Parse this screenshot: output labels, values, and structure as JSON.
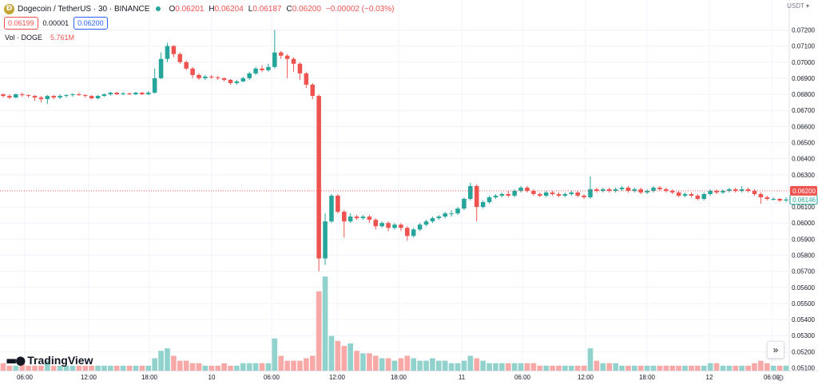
{
  "header": {
    "coin_letter": "Ð",
    "symbol": "Dogecoin / TetherUS · 30 · BINANCE",
    "ohlc": [
      {
        "k": "O",
        "v": "0.06201"
      },
      {
        "k": "H",
        "v": "0.06204"
      },
      {
        "k": "L",
        "v": "0.06187"
      },
      {
        "k": "C",
        "v": "0.06200"
      },
      {
        "k": "",
        "v": "−0.00002 (−0.03%)"
      }
    ],
    "sell_price": "0.06199",
    "spread": "0.00001",
    "buy_price": "0.06200"
  },
  "volume_legend": {
    "label": "Vol · DOGE",
    "value": "5.761M"
  },
  "currency": "USDT",
  "logo_text": "TradingView",
  "goto_icon": "»",
  "settings_icon": "gear-icon",
  "colors": {
    "up": "#26a69a",
    "down": "#ef5350",
    "up_vol": "#92d2cc",
    "down_vol": "#f7a9a7",
    "grid": "#f0f3fa",
    "axis_text": "#131722",
    "accent": "#2962ff"
  },
  "chart_data": {
    "type": "candlestick",
    "price_axis": {
      "min": 0.0506,
      "max": 0.0726,
      "ticks": [
        "0.07200",
        "0.07100",
        "0.07000",
        "0.06900",
        "0.06800",
        "0.06700",
        "0.06600",
        "0.06500",
        "0.06400",
        "0.06300",
        "0.06200",
        "0.06100",
        "0.06000",
        "0.05900",
        "0.05800",
        "0.05700",
        "0.05600",
        "0.05500",
        "0.05400",
        "0.05300",
        "0.05200",
        "0.05100"
      ]
    },
    "time_labels": [
      "06:00",
      "12:00",
      "18:00",
      "10",
      "06:00",
      "12:00",
      "18:00",
      "11",
      "06:00",
      "12:00",
      "18:00",
      "12",
      "06:00"
    ],
    "last_price_label": "0.06200",
    "prev_close_label": "0.06146",
    "candles": [
      [
        0.068,
        0.0679,
        0.06805,
        0.0678
      ],
      [
        0.0679,
        0.0678,
        0.068,
        0.0677
      ],
      [
        0.0678,
        0.068,
        0.06805,
        0.06775
      ],
      [
        0.068,
        0.06795,
        0.0681,
        0.06785
      ],
      [
        0.06795,
        0.0679,
        0.068,
        0.0678
      ],
      [
        0.0679,
        0.0678,
        0.06795,
        0.0676
      ],
      [
        0.0678,
        0.0677,
        0.0679,
        0.0675
      ],
      [
        0.0677,
        0.0679,
        0.06795,
        0.0674
      ],
      [
        0.0679,
        0.0678,
        0.06795,
        0.0677
      ],
      [
        0.0678,
        0.0679,
        0.068,
        0.0677
      ],
      [
        0.0679,
        0.06795,
        0.068,
        0.0678
      ],
      [
        0.06795,
        0.068,
        0.06805,
        0.06785
      ],
      [
        0.068,
        0.06795,
        0.0681,
        0.0679
      ],
      [
        0.06795,
        0.0679,
        0.068,
        0.0678
      ],
      [
        0.0679,
        0.06775,
        0.06795,
        0.0677
      ],
      [
        0.06775,
        0.0679,
        0.06795,
        0.0677
      ],
      [
        0.0679,
        0.068,
        0.06805,
        0.06785
      ],
      [
        0.068,
        0.0681,
        0.06815,
        0.0679
      ],
      [
        0.0681,
        0.068,
        0.06815,
        0.06795
      ],
      [
        0.068,
        0.06805,
        0.06815,
        0.06795
      ],
      [
        0.06805,
        0.068,
        0.0681,
        0.06795
      ],
      [
        0.068,
        0.0681,
        0.06815,
        0.06795
      ],
      [
        0.0681,
        0.068,
        0.06815,
        0.06795
      ],
      [
        0.068,
        0.0681,
        0.0682,
        0.06795
      ],
      [
        0.0681,
        0.069,
        0.0696,
        0.06805
      ],
      [
        0.069,
        0.0702,
        0.0706,
        0.06895
      ],
      [
        0.0702,
        0.071,
        0.0712,
        0.07
      ],
      [
        0.071,
        0.0705,
        0.07105,
        0.0703
      ],
      [
        0.0705,
        0.07,
        0.0706,
        0.0699
      ],
      [
        0.07,
        0.0696,
        0.0701,
        0.0695
      ],
      [
        0.0696,
        0.0692,
        0.0697,
        0.069
      ],
      [
        0.0692,
        0.069,
        0.0693,
        0.0689
      ],
      [
        0.069,
        0.0691,
        0.0692,
        0.0689
      ],
      [
        0.0691,
        0.06905,
        0.0692,
        0.06895
      ],
      [
        0.06905,
        0.069,
        0.06915,
        0.0689
      ],
      [
        0.069,
        0.0689,
        0.06905,
        0.0688
      ],
      [
        0.0689,
        0.0687,
        0.06895,
        0.0686
      ],
      [
        0.0687,
        0.0688,
        0.0689,
        0.0686
      ],
      [
        0.0688,
        0.069,
        0.0691,
        0.06875
      ],
      [
        0.069,
        0.0693,
        0.0694,
        0.0689
      ],
      [
        0.0693,
        0.0696,
        0.0697,
        0.0692
      ],
      [
        0.0696,
        0.0695,
        0.0698,
        0.0694
      ],
      [
        0.0695,
        0.0697,
        0.0699,
        0.0694
      ],
      [
        0.0697,
        0.0706,
        0.072,
        0.0696
      ],
      [
        0.0706,
        0.0704,
        0.0707,
        0.0702
      ],
      [
        0.0704,
        0.0702,
        0.0705,
        0.069
      ],
      [
        0.0702,
        0.0699,
        0.0703,
        0.0694
      ],
      [
        0.0699,
        0.0693,
        0.07,
        0.0689
      ],
      [
        0.0693,
        0.0686,
        0.0694,
        0.0684
      ],
      [
        0.0686,
        0.0679,
        0.0687,
        0.0677
      ],
      [
        0.0679,
        0.0578,
        0.068,
        0.057
      ],
      [
        0.0578,
        0.0601,
        0.0606,
        0.0574
      ],
      [
        0.0601,
        0.0617,
        0.0618,
        0.06
      ],
      [
        0.0617,
        0.0607,
        0.0618,
        0.0606
      ],
      [
        0.0607,
        0.0601,
        0.0608,
        0.0591
      ],
      [
        0.0601,
        0.0604,
        0.0606,
        0.06
      ],
      [
        0.0604,
        0.0603,
        0.0605,
        0.0602
      ],
      [
        0.0603,
        0.0604,
        0.0605,
        0.0602
      ],
      [
        0.0604,
        0.0602,
        0.0605,
        0.06
      ],
      [
        0.0602,
        0.0598,
        0.0603,
        0.0596
      ],
      [
        0.0598,
        0.06,
        0.0601,
        0.0597
      ],
      [
        0.06,
        0.0597,
        0.0601,
        0.0595
      ],
      [
        0.0597,
        0.0599,
        0.06,
        0.0596
      ],
      [
        0.0599,
        0.0597,
        0.06,
        0.0595
      ],
      [
        0.0597,
        0.0592,
        0.0598,
        0.0589
      ],
      [
        0.0592,
        0.0596,
        0.0597,
        0.0591
      ],
      [
        0.0596,
        0.0599,
        0.06,
        0.0595
      ],
      [
        0.0599,
        0.0601,
        0.0602,
        0.0598
      ],
      [
        0.0601,
        0.0603,
        0.0604,
        0.06
      ],
      [
        0.0603,
        0.0604,
        0.0605,
        0.0602
      ],
      [
        0.0604,
        0.0606,
        0.0607,
        0.0603
      ],
      [
        0.0606,
        0.0606,
        0.0608,
        0.0604
      ],
      [
        0.0606,
        0.0609,
        0.061,
        0.0605
      ],
      [
        0.0609,
        0.0615,
        0.0616,
        0.0608
      ],
      [
        0.0615,
        0.0623,
        0.0625,
        0.0614
      ],
      [
        0.0623,
        0.061,
        0.0624,
        0.0601
      ],
      [
        0.061,
        0.0613,
        0.0614,
        0.0609
      ],
      [
        0.0613,
        0.0616,
        0.0617,
        0.0612
      ],
      [
        0.0616,
        0.0617,
        0.0618,
        0.0615
      ],
      [
        0.0617,
        0.0618,
        0.0619,
        0.0616
      ],
      [
        0.0618,
        0.0617,
        0.062,
        0.0616
      ],
      [
        0.0617,
        0.062,
        0.0621,
        0.0616
      ],
      [
        0.062,
        0.0622,
        0.0623,
        0.0619
      ],
      [
        0.0622,
        0.062,
        0.0623,
        0.0619
      ],
      [
        0.062,
        0.0618,
        0.0621,
        0.0617
      ],
      [
        0.0618,
        0.0617,
        0.0619,
        0.0616
      ],
      [
        0.0617,
        0.0619,
        0.062,
        0.0616
      ],
      [
        0.0619,
        0.0618,
        0.062,
        0.0617
      ],
      [
        0.0618,
        0.0617,
        0.0619,
        0.0616
      ],
      [
        0.0617,
        0.0618,
        0.0619,
        0.0616
      ],
      [
        0.0618,
        0.0619,
        0.062,
        0.0617
      ],
      [
        0.0619,
        0.0617,
        0.062,
        0.0616
      ],
      [
        0.0617,
        0.0616,
        0.0618,
        0.0615
      ],
      [
        0.0616,
        0.0621,
        0.0629,
        0.0615
      ],
      [
        0.0621,
        0.062,
        0.0622,
        0.0619
      ],
      [
        0.062,
        0.0621,
        0.0622,
        0.0619
      ],
      [
        0.0621,
        0.062,
        0.0622,
        0.0619
      ],
      [
        0.062,
        0.0621,
        0.0622,
        0.0619
      ],
      [
        0.0621,
        0.0622,
        0.0623,
        0.062
      ],
      [
        0.0622,
        0.062,
        0.0623,
        0.0619
      ],
      [
        0.062,
        0.0621,
        0.0622,
        0.0619
      ],
      [
        0.0621,
        0.0619,
        0.0622,
        0.0618
      ],
      [
        0.0619,
        0.062,
        0.0621,
        0.0618
      ],
      [
        0.062,
        0.0622,
        0.0623,
        0.0619
      ],
      [
        0.0622,
        0.0621,
        0.0623,
        0.062
      ],
      [
        0.0621,
        0.062,
        0.0622,
        0.0619
      ],
      [
        0.062,
        0.0619,
        0.0621,
        0.0618
      ],
      [
        0.0619,
        0.0617,
        0.062,
        0.0616
      ],
      [
        0.0617,
        0.0618,
        0.0619,
        0.0616
      ],
      [
        0.0618,
        0.0617,
        0.0619,
        0.0616
      ],
      [
        0.0617,
        0.0615,
        0.0618,
        0.0614
      ],
      [
        0.0615,
        0.0618,
        0.0619,
        0.0614
      ],
      [
        0.0618,
        0.062,
        0.0621,
        0.0617
      ],
      [
        0.062,
        0.0619,
        0.0621,
        0.0618
      ],
      [
        0.0619,
        0.062,
        0.0621,
        0.0618
      ],
      [
        0.062,
        0.0621,
        0.0622,
        0.0619
      ],
      [
        0.0621,
        0.062,
        0.0622,
        0.0619
      ],
      [
        0.062,
        0.0621,
        0.0623,
        0.0619
      ],
      [
        0.0621,
        0.062,
        0.0622,
        0.0619
      ],
      [
        0.062,
        0.0618,
        0.0621,
        0.0617
      ],
      [
        0.0618,
        0.0616,
        0.0619,
        0.0612
      ],
      [
        0.0616,
        0.0615,
        0.0617,
        0.0614
      ],
      [
        0.0615,
        0.0615,
        0.0616,
        0.0614
      ],
      [
        0.0615,
        0.0614,
        0.06155,
        0.0613
      ],
      [
        0.0614,
        0.06146,
        0.0616,
        0.0613
      ]
    ],
    "volume": [
      3,
      2,
      2,
      3,
      2,
      2,
      2,
      4,
      2,
      2,
      2,
      2,
      2,
      2,
      2,
      2,
      2,
      2,
      2,
      2,
      2,
      2,
      2,
      2,
      5,
      8,
      9,
      6,
      4,
      4,
      3,
      3,
      2,
      2,
      2,
      3,
      2,
      2,
      3,
      3,
      3,
      3,
      3,
      13,
      6,
      4,
      4,
      4,
      5,
      6,
      32,
      38,
      14,
      12,
      10,
      11,
      8,
      7,
      7,
      6,
      5,
      5,
      4,
      5,
      6,
      5,
      4,
      4,
      5,
      4,
      4,
      3,
      3,
      4,
      6,
      5,
      4,
      3,
      3,
      3,
      3,
      3,
      3,
      3,
      3,
      2,
      2,
      2,
      2,
      2,
      2,
      2,
      2,
      9,
      4,
      3,
      3,
      3,
      2,
      2,
      2,
      2,
      2,
      2,
      2,
      2,
      2,
      2,
      2,
      2,
      2,
      2,
      3,
      3,
      2,
      2,
      2,
      2,
      2,
      3,
      4,
      3,
      2,
      2,
      2
    ]
  }
}
